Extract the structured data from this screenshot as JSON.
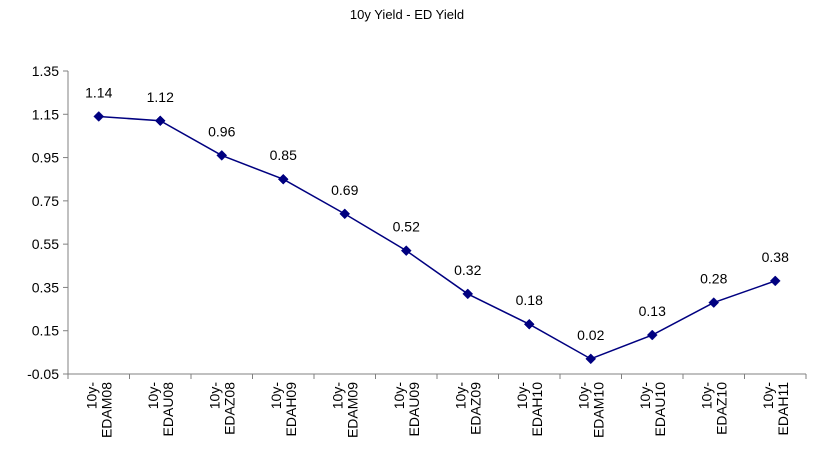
{
  "chart_data": {
    "type": "line",
    "title": "10y Yield - ED Yield",
    "xlabel": "",
    "ylabel": "",
    "categories": [
      [
        "10y-",
        "EDAM08"
      ],
      [
        "10y-",
        "EDAU08"
      ],
      [
        "10y-",
        "EDAZ08"
      ],
      [
        "10y-",
        "EDAH09"
      ],
      [
        "10y-",
        "EDAM09"
      ],
      [
        "10y-",
        "EDAU09"
      ],
      [
        "10y-",
        "EDAZ09"
      ],
      [
        "10y-",
        "EDAH10"
      ],
      [
        "10y-",
        "EDAM10"
      ],
      [
        "10y-",
        "EDAU10"
      ],
      [
        "10y-",
        "EDAZ10"
      ],
      [
        "10y-",
        "EDAH11"
      ]
    ],
    "series": [
      {
        "values": [
          1.14,
          1.12,
          0.96,
          0.85,
          0.69,
          0.52,
          0.32,
          0.18,
          0.02,
          0.13,
          0.28,
          0.38
        ],
        "labels": [
          "1.14",
          "1.12",
          "0.96",
          "0.85",
          "0.69",
          "0.52",
          "0.32",
          "0.18",
          "0.02",
          "0.13",
          "0.28",
          "0.38"
        ],
        "color": "#000080"
      }
    ],
    "ylim": [
      -0.05,
      1.35
    ],
    "yticks": [
      "-0.05",
      "0.15",
      "0.35",
      "0.55",
      "0.75",
      "0.95",
      "1.15",
      "1.35"
    ],
    "grid": false,
    "legend": "none",
    "axis_color": "#808080"
  }
}
